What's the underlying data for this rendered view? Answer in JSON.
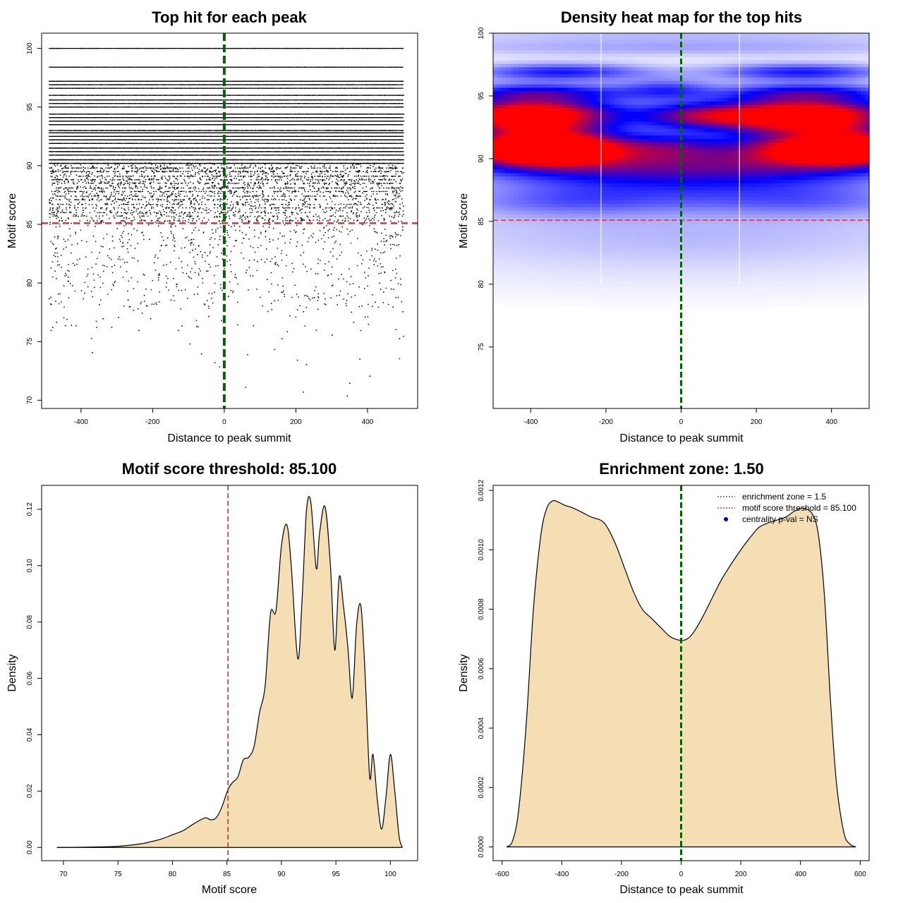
{
  "chart_data": [
    {
      "type": "scatter",
      "title": "Top hit for each peak",
      "xlabel": "Distance to peak summit",
      "ylabel": "Motif score",
      "xlim": [
        -510,
        540
      ],
      "ylim": [
        69.3,
        101.3
      ],
      "x_ticks": [
        -400,
        -200,
        0,
        200,
        400
      ],
      "y_ticks": [
        70,
        75,
        80,
        85,
        90,
        95,
        100
      ],
      "x_range_points": [
        -490,
        500
      ],
      "threshold": 85.1,
      "center": 0,
      "score_bands": [
        {
          "score": 100.0,
          "density": 1.0
        },
        {
          "score": 98.4,
          "density": 1.0
        },
        {
          "score": 97.2,
          "density": 1.0
        },
        {
          "score": 96.9,
          "density": 0.9
        },
        {
          "score": 96.6,
          "density": 0.9
        },
        {
          "score": 96.0,
          "density": 0.8
        },
        {
          "score": 95.6,
          "density": 0.9
        },
        {
          "score": 95.3,
          "density": 0.9
        },
        {
          "score": 95.0,
          "density": 0.9
        },
        {
          "score": 94.4,
          "density": 0.9
        },
        {
          "score": 94.1,
          "density": 0.9
        },
        {
          "score": 93.8,
          "density": 0.9
        },
        {
          "score": 93.5,
          "density": 0.9
        },
        {
          "score": 93.0,
          "density": 0.9
        },
        {
          "score": 92.8,
          "density": 0.9
        },
        {
          "score": 92.5,
          "density": 0.9
        },
        {
          "score": 92.2,
          "density": 0.9
        },
        {
          "score": 91.9,
          "density": 0.8
        },
        {
          "score": 91.5,
          "density": 0.9
        },
        {
          "score": 91.2,
          "density": 0.9
        },
        {
          "score": 90.9,
          "density": 0.9
        },
        {
          "score": 90.5,
          "density": 0.8
        },
        {
          "score": 90.2,
          "density": 0.8
        },
        {
          "score": 89.8,
          "density": 0.7
        },
        {
          "score": 89.5,
          "density": 0.7
        },
        {
          "score": 89.1,
          "density": 0.6
        },
        {
          "score": 88.8,
          "density": 0.55
        },
        {
          "score": 88.5,
          "density": 0.5
        },
        {
          "score": 88.1,
          "density": 0.5
        },
        {
          "score": 87.8,
          "density": 0.45
        },
        {
          "score": 87.4,
          "density": 0.4
        },
        {
          "score": 87.1,
          "density": 0.35
        },
        {
          "score": 86.7,
          "density": 0.3
        },
        {
          "score": 86.4,
          "density": 0.3
        },
        {
          "score": 86.0,
          "density": 0.25
        },
        {
          "score": 85.7,
          "density": 0.2
        },
        {
          "score": 85.3,
          "density": 0.2
        }
      ],
      "sparse_range": [
        70.5,
        85.3
      ],
      "sparse_points": [
        [
          342,
          70.4
        ],
        [
          349,
          71.5
        ],
        [
          405,
          72.1
        ],
        [
          -370,
          74.1
        ],
        [
          -65,
          74.0
        ],
        [
          -485,
          76.0
        ],
        [
          -470,
          76.7
        ],
        [
          -445,
          76.4
        ],
        [
          -415,
          76.4
        ],
        [
          -340,
          77.0
        ],
        [
          -297,
          77.1
        ],
        [
          -240,
          76.0
        ],
        [
          -207,
          77.0
        ],
        [
          -130,
          76.0
        ],
        [
          -75,
          76.3
        ],
        [
          -45,
          77.2
        ],
        [
          80,
          76.4
        ],
        [
          160,
          75.3
        ],
        [
          220,
          77.6
        ],
        [
          260,
          77.8
        ],
        [
          300,
          75.6
        ],
        [
          360,
          76.7
        ],
        [
          488,
          75.3
        ],
        [
          497,
          77.6
        ],
        [
          228,
          73.1
        ],
        [
          -490,
          78.7
        ],
        [
          -350,
          78.2
        ],
        [
          -270,
          78.6
        ],
        [
          -150,
          78.6
        ],
        [
          10,
          78.9
        ],
        [
          130,
          78.3
        ],
        [
          250,
          78.8
        ],
        [
          320,
          79.0
        ],
        [
          420,
          78.4
        ],
        [
          470,
          78.0
        ]
      ]
    },
    {
      "type": "heatmap",
      "title": "Density heat map for the top hits",
      "xlabel": "Distance to peak summit",
      "ylabel": "Motif score",
      "xlim": [
        -500,
        500
      ],
      "ylim": [
        70.1,
        100.0
      ],
      "x_ticks": [
        -400,
        -200,
        0,
        200,
        400
      ],
      "y_ticks": [
        75,
        80,
        85,
        90,
        95,
        100
      ],
      "threshold": 85.1,
      "center": 0,
      "color_low": "#ffffff",
      "color_mid": "#0000ff",
      "color_high": "#ff0000",
      "blobs": [
        {
          "x": -430,
          "y": 90.9,
          "sx": 130,
          "sy": 0.9,
          "w": 1.0
        },
        {
          "x": -300,
          "y": 90.9,
          "sx": 120,
          "sy": 0.9,
          "w": 0.9
        },
        {
          "x": 330,
          "y": 90.9,
          "sx": 140,
          "sy": 0.9,
          "w": 0.95
        },
        {
          "x": 460,
          "y": 90.9,
          "sx": 90,
          "sy": 0.9,
          "w": 0.9
        },
        {
          "x": -400,
          "y": 92.9,
          "sx": 160,
          "sy": 0.7,
          "w": 0.9
        },
        {
          "x": 320,
          "y": 92.9,
          "sx": 180,
          "sy": 0.7,
          "w": 0.95
        },
        {
          "x": -400,
          "y": 93.9,
          "sx": 160,
          "sy": 0.6,
          "w": 0.85
        },
        {
          "x": 320,
          "y": 93.9,
          "sx": 180,
          "sy": 0.6,
          "w": 0.85
        },
        {
          "x": -380,
          "y": 95.2,
          "sx": 170,
          "sy": 0.55,
          "w": 0.65
        },
        {
          "x": 330,
          "y": 95.2,
          "sx": 170,
          "sy": 0.55,
          "w": 0.65
        },
        {
          "x": -320,
          "y": 96.9,
          "sx": 170,
          "sy": 0.5,
          "w": 0.5
        },
        {
          "x": 320,
          "y": 96.9,
          "sx": 170,
          "sy": 0.5,
          "w": 0.5
        },
        {
          "x": -30,
          "y": 91.0,
          "sx": 110,
          "sy": 0.8,
          "w": 0.5
        },
        {
          "x": 30,
          "y": 93.4,
          "sx": 110,
          "sy": 0.7,
          "w": 0.5
        },
        {
          "x": -40,
          "y": 95.5,
          "sx": 90,
          "sy": 0.6,
          "w": 0.35
        },
        {
          "x": 0,
          "y": 89.6,
          "sx": 500,
          "sy": 0.9,
          "w": 0.45
        },
        {
          "x": -200,
          "y": 88.2,
          "sx": 260,
          "sy": 1.2,
          "w": 0.3
        },
        {
          "x": 250,
          "y": 88.2,
          "sx": 260,
          "sy": 1.2,
          "w": 0.3
        },
        {
          "x": -300,
          "y": 86.5,
          "sx": 220,
          "sy": 0.8,
          "w": 0.22
        },
        {
          "x": 350,
          "y": 86.5,
          "sx": 220,
          "sy": 0.8,
          "w": 0.2
        },
        {
          "x": 0,
          "y": 84.5,
          "sx": 600,
          "sy": 1.6,
          "w": 0.12
        },
        {
          "x": 0,
          "y": 82.0,
          "sx": 600,
          "sy": 2.0,
          "w": 0.07
        },
        {
          "x": 0,
          "y": 98.8,
          "sx": 600,
          "sy": 0.5,
          "w": 0.18
        },
        {
          "x": 0,
          "y": 100.0,
          "sx": 600,
          "sy": 0.6,
          "w": 0.14
        }
      ],
      "white_lines_x": [
        -213,
        155
      ]
    },
    {
      "type": "area",
      "title": "Motif score threshold: 85.100",
      "xlabel": "Motif score",
      "ylabel": "Density",
      "xlim": [
        68.0,
        102.5
      ],
      "ylim": [
        -0.0047,
        0.1285
      ],
      "x_ticks": [
        70,
        75,
        80,
        85,
        90,
        95,
        100
      ],
      "y_ticks": [
        0.0,
        0.02,
        0.04,
        0.06,
        0.08,
        0.1,
        0.12
      ],
      "y_tick_labels": [
        "0.00",
        "0.02",
        "0.04",
        "0.06",
        "0.08",
        "0.10",
        "0.12"
      ],
      "threshold": 85.1,
      "fill_color": "#f5deb3",
      "x": [
        69.4,
        72,
        75,
        77,
        78,
        79,
        80,
        81,
        82,
        83,
        83.5,
        84,
        84.5,
        85.1,
        85.5,
        86,
        86.5,
        87,
        87.5,
        88,
        88.5,
        89,
        89.5,
        90,
        90.5,
        90.9,
        91.5,
        91.9,
        92.3,
        92.7,
        93.2,
        93.5,
        94.0,
        94.5,
        94.9,
        95.3,
        95.7,
        96.1,
        96.5,
        96.9,
        97.3,
        97.7,
        98.1,
        98.4,
        98.8,
        99.2,
        99.6,
        100.0,
        100.4,
        100.8,
        101.1
      ],
      "y": [
        0.0,
        0.0001,
        0.0004,
        0.0012,
        0.002,
        0.003,
        0.0045,
        0.006,
        0.0085,
        0.0105,
        0.0098,
        0.0105,
        0.014,
        0.0205,
        0.023,
        0.025,
        0.031,
        0.032,
        0.036,
        0.048,
        0.057,
        0.083,
        0.084,
        0.107,
        0.1145,
        0.1,
        0.067,
        0.088,
        0.1195,
        0.1225,
        0.099,
        0.1115,
        0.121,
        0.1,
        0.07,
        0.096,
        0.0855,
        0.071,
        0.053,
        0.079,
        0.0855,
        0.06,
        0.025,
        0.033,
        0.017,
        0.0065,
        0.018,
        0.033,
        0.02,
        0.004,
        0.0
      ]
    },
    {
      "type": "area",
      "title": "Enrichment zone: 1.50",
      "xlabel": "Distance to peak summit",
      "ylabel": "Density",
      "xlim": [
        -630,
        630
      ],
      "ylim": [
        -4.63e-05,
        0.001217
      ],
      "x_ticks": [
        -600,
        -400,
        -200,
        0,
        200,
        400,
        600
      ],
      "y_ticks": [
        0.0,
        0.0002,
        0.0004,
        0.0006,
        0.0008,
        0.001,
        0.0012
      ],
      "y_tick_labels": [
        "0.0000",
        "0.0002",
        "0.0004",
        "0.0006",
        "0.0008",
        "0.0010",
        "0.0012"
      ],
      "center": 0,
      "fill_color": "#f5deb3",
      "legend": {
        "position": "top-right",
        "entries": [
          {
            "label": "enrichment zone = 1.5",
            "color": "#006400",
            "style": "dotted"
          },
          {
            "label": "motif score threshold = 85.100",
            "color": "#cd2626",
            "style": "dotted"
          },
          {
            "label": "centrality p-val = NS",
            "color": "#0000cd",
            "style": "point"
          }
        ]
      },
      "x": [
        -585,
        -565,
        -545,
        -520,
        -495,
        -470,
        -450,
        -430,
        -410,
        -390,
        -360,
        -330,
        -300,
        -270,
        -250,
        -220,
        -190,
        -160,
        -130,
        -100,
        -70,
        -40,
        -20,
        0,
        20,
        40,
        70,
        100,
        130,
        160,
        200,
        230,
        260,
        290,
        320,
        350,
        380,
        410,
        440,
        460,
        480,
        500,
        520,
        545,
        565,
        585
      ],
      "y": [
        0.0,
        2e-05,
        0.00012,
        0.0004,
        0.0008,
        0.00105,
        0.00114,
        0.001165,
        0.00116,
        0.00115,
        0.00114,
        0.001125,
        0.00111,
        0.0011,
        0.00108,
        0.00102,
        0.00094,
        0.00086,
        0.0008,
        0.00077,
        0.00074,
        0.00071,
        0.0007,
        0.000695,
        0.0007,
        0.00072,
        0.00077,
        0.00083,
        0.00089,
        0.00094,
        0.001,
        0.00104,
        0.001075,
        0.00109,
        0.0011,
        0.00111,
        0.00113,
        0.00114,
        0.00112,
        0.00105,
        0.00085,
        0.0005,
        0.00022,
        5e-05,
        1e-05,
        0.0
      ]
    }
  ]
}
